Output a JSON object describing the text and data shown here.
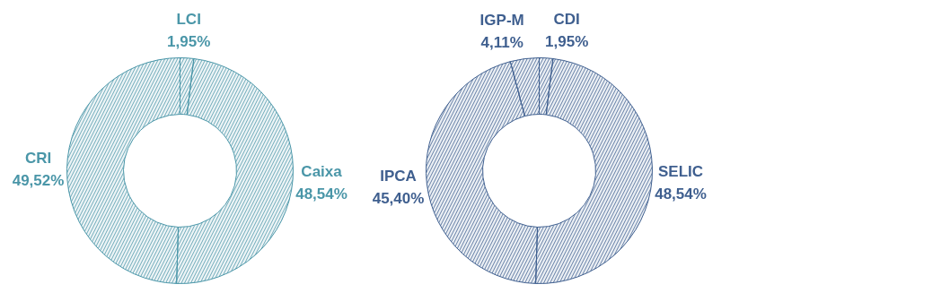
{
  "chart_data": [
    {
      "type": "donut",
      "categories": [
        "LCI",
        "Caixa",
        "CRI"
      ],
      "values": [
        1.95,
        48.54,
        49.52
      ],
      "colors": [
        "#4a96a8",
        "#4a96a8",
        "#4a96a8"
      ],
      "value_labels": [
        "1,95%",
        "48,54%",
        "49,52%"
      ]
    },
    {
      "type": "donut",
      "categories": [
        "CDI",
        "SELIC",
        "IPCA",
        "IGP-M"
      ],
      "values": [
        1.95,
        48.54,
        45.4,
        4.11
      ],
      "colors": [
        "#3f5f8f",
        "#3f5f8f",
        "#3f5f8f",
        "#3f5f8f"
      ],
      "value_labels": [
        "1,95%",
        "48,54%",
        "45,40%",
        "4,11%"
      ]
    }
  ]
}
